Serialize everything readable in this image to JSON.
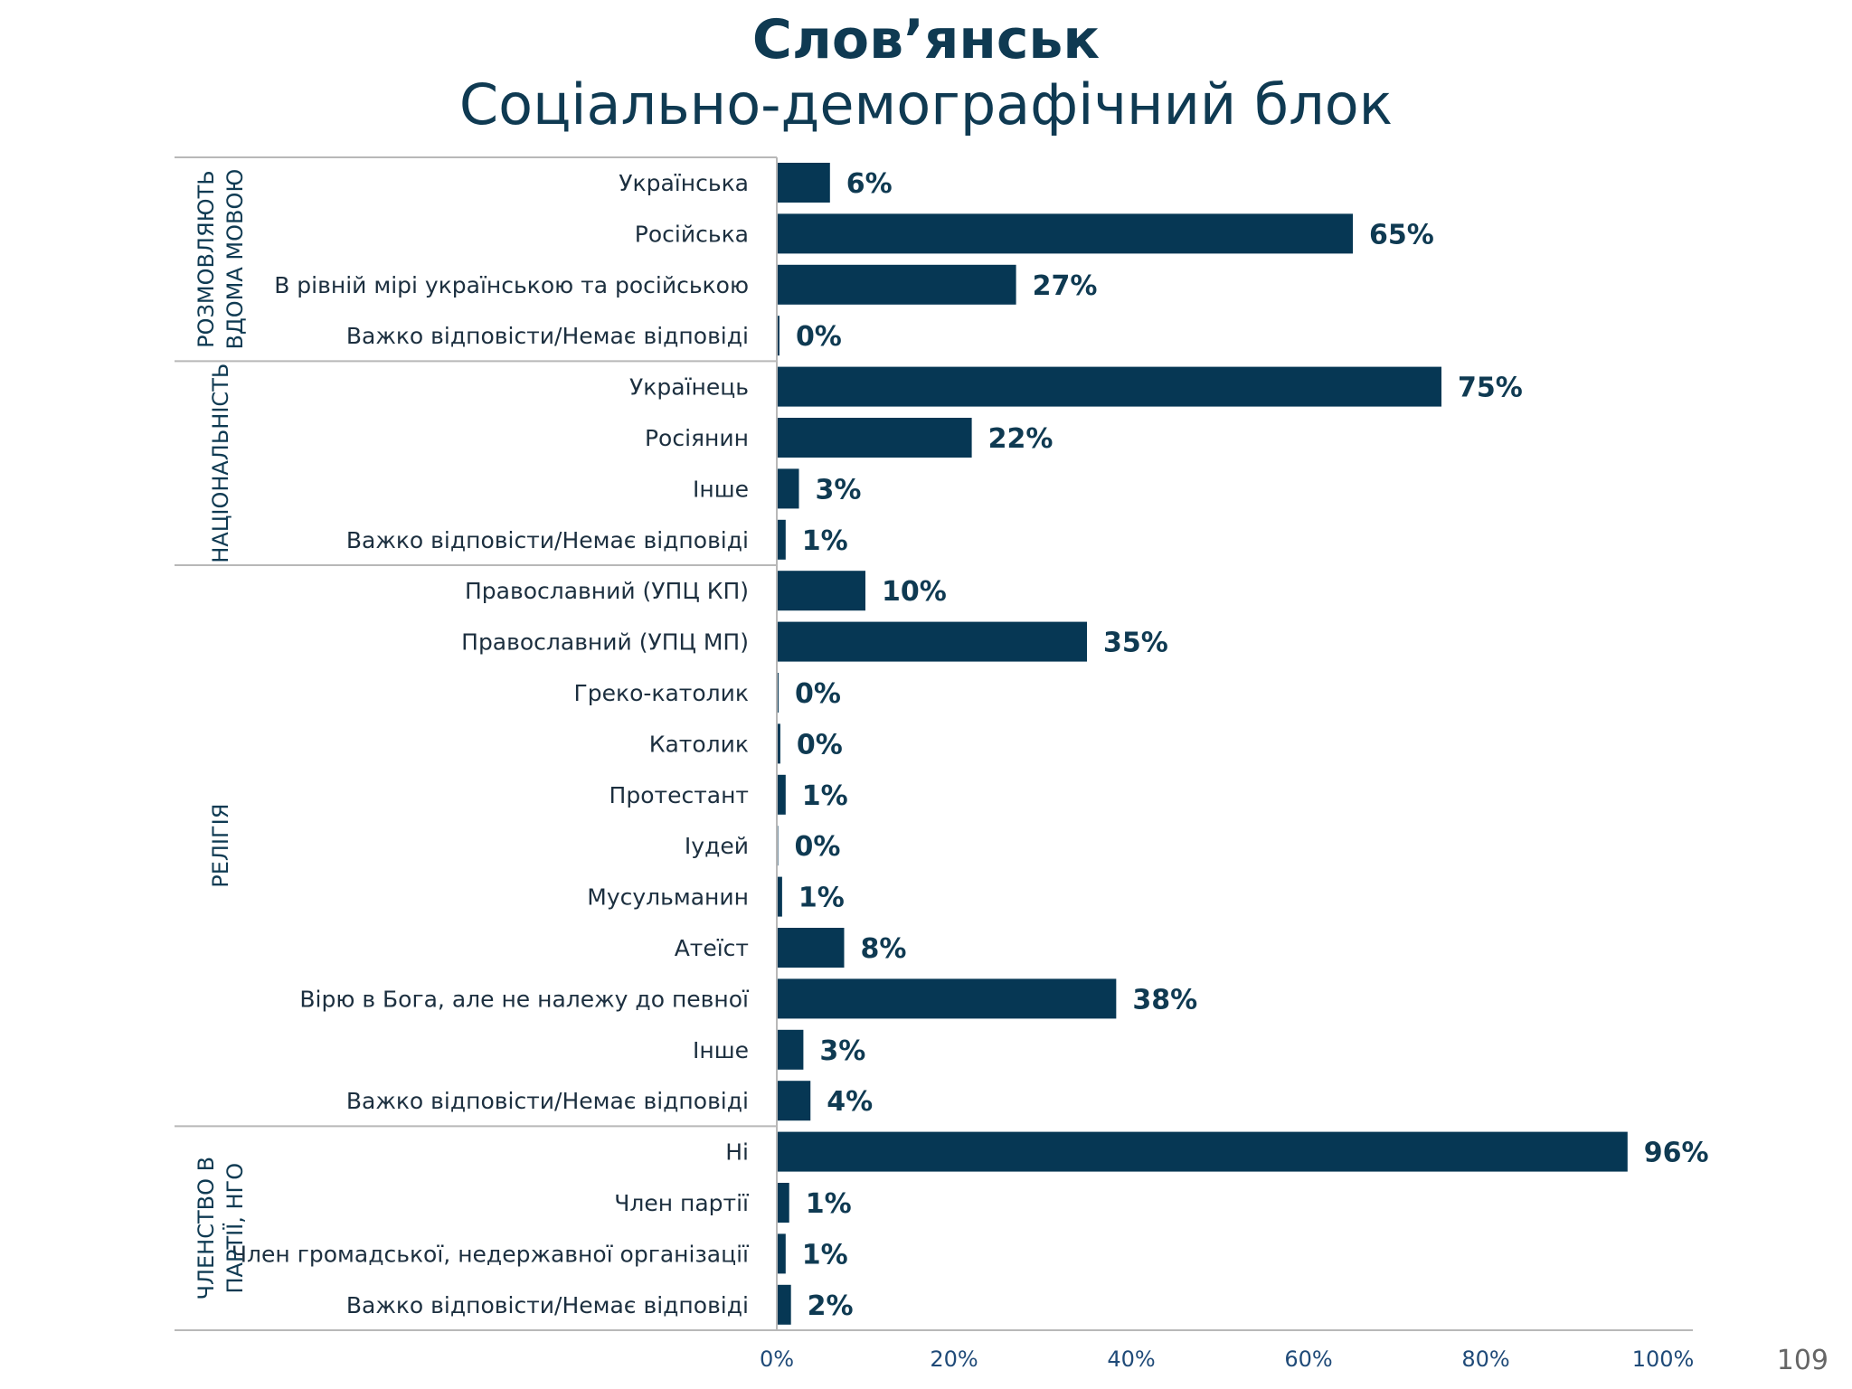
{
  "title_line1": "Слов’янськ",
  "title_line2": "Соціально-демографічний блок",
  "page_number": "109",
  "colors": {
    "bar": "#063754",
    "title": "#0f3a52",
    "axis_line": "#b8b8b8"
  },
  "chart_data": {
    "type": "bar",
    "orientation": "horizontal",
    "xlim": [
      0,
      100
    ],
    "x_ticks": [
      "0%",
      "20%",
      "40%",
      "60%",
      "80%",
      "100%"
    ],
    "grid": false,
    "groups": [
      {
        "label": [
          "РОЗМОВЛЯЮТЬ",
          "ВДОМА МОВОЮ"
        ],
        "items": [
          {
            "category": "Українська",
            "value": 6,
            "label": "6%"
          },
          {
            "category": "Російська",
            "value": 65,
            "label": "65%"
          },
          {
            "category": "В рівній мірі українською та російською",
            "value": 27,
            "label": "27%"
          },
          {
            "category": "Важко відповісти/Немає відповіді",
            "value": 0.3,
            "label": "0%"
          }
        ]
      },
      {
        "label": [
          "НАЦІОНАЛЬНІСТЬ"
        ],
        "items": [
          {
            "category": "Українець",
            "value": 75,
            "label": "75%"
          },
          {
            "category": "Росіянин",
            "value": 22,
            "label": "22%"
          },
          {
            "category": "Інше",
            "value": 2.5,
            "label": "3%"
          },
          {
            "category": "Важко відповісти/Немає відповіді",
            "value": 1,
            "label": "1%"
          }
        ]
      },
      {
        "label": [
          "РЕЛІГІЯ"
        ],
        "items": [
          {
            "category": "Православний (УПЦ КП)",
            "value": 10,
            "label": "10%"
          },
          {
            "category": "Православний (УПЦ МП)",
            "value": 35,
            "label": "35%"
          },
          {
            "category": "Греко-католик",
            "value": 0.2,
            "label": "0%"
          },
          {
            "category": "Католик",
            "value": 0.4,
            "label": "0%"
          },
          {
            "category": "Протестант",
            "value": 1,
            "label": "1%"
          },
          {
            "category": "Іудей",
            "value": 0.1,
            "label": "0%"
          },
          {
            "category": "Мусульманин",
            "value": 0.6,
            "label": "1%"
          },
          {
            "category": "Атеїст",
            "value": 7.6,
            "label": "8%"
          },
          {
            "category": "Вірю в Бога, але не належу до певної",
            "value": 38.3,
            "label": "38%"
          },
          {
            "category": "Інше",
            "value": 3,
            "label": "3%"
          },
          {
            "category": "Важко відповісти/Немає відповіді",
            "value": 3.8,
            "label": "4%"
          }
        ]
      },
      {
        "label": [
          "ЧЛЕНСТВО В",
          "ПАРТІЇ, НГО"
        ],
        "items": [
          {
            "category": "Ні",
            "value": 96,
            "label": "96%"
          },
          {
            "category": "Член партії",
            "value": 1.4,
            "label": "1%"
          },
          {
            "category": "Член громадської, недержавної організації",
            "value": 1,
            "label": "1%"
          },
          {
            "category": "Важко відповісти/Немає відповіді",
            "value": 1.6,
            "label": "2%"
          }
        ]
      }
    ]
  }
}
